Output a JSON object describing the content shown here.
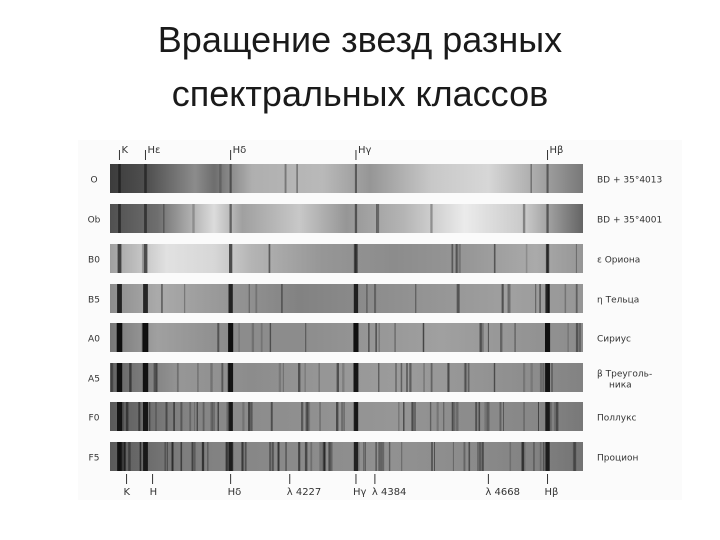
{
  "title": {
    "line1": "Вращение звезд разных",
    "line2": "спектральных классов"
  },
  "figure": {
    "top_lines": [
      {
        "id": "K",
        "label": "K"
      },
      {
        "id": "He",
        "label": "Hε"
      },
      {
        "id": "Hd",
        "label": "Hδ"
      },
      {
        "id": "Hg",
        "label": "Hγ"
      },
      {
        "id": "Hb",
        "label": "Hβ"
      }
    ],
    "bottom_lines": [
      {
        "id": "K",
        "label": "K"
      },
      {
        "id": "H",
        "label": "H"
      },
      {
        "id": "Hd",
        "label": "Hδ"
      },
      {
        "id": "l4227",
        "label": "λ 4227"
      },
      {
        "id": "Hg",
        "label": "Hγ"
      },
      {
        "id": "l4384",
        "label": "λ 4384"
      },
      {
        "id": "l4668",
        "label": "λ 4668"
      },
      {
        "id": "Hb",
        "label": "Hβ"
      }
    ],
    "spectra": [
      {
        "class": "O",
        "star": "BD + 35°4013"
      },
      {
        "class": "Ob",
        "star": "BD + 35°4001"
      },
      {
        "class": "B0",
        "star": "ε Ориона"
      },
      {
        "class": "B5",
        "star": "η Тельца"
      },
      {
        "class": "A0",
        "star": "Сириус"
      },
      {
        "class": "A5",
        "star": "β Треуголь-\nника"
      },
      {
        "class": "F0",
        "star": "Поллукс"
      },
      {
        "class": "F5",
        "star": "Процион"
      }
    ]
  }
}
